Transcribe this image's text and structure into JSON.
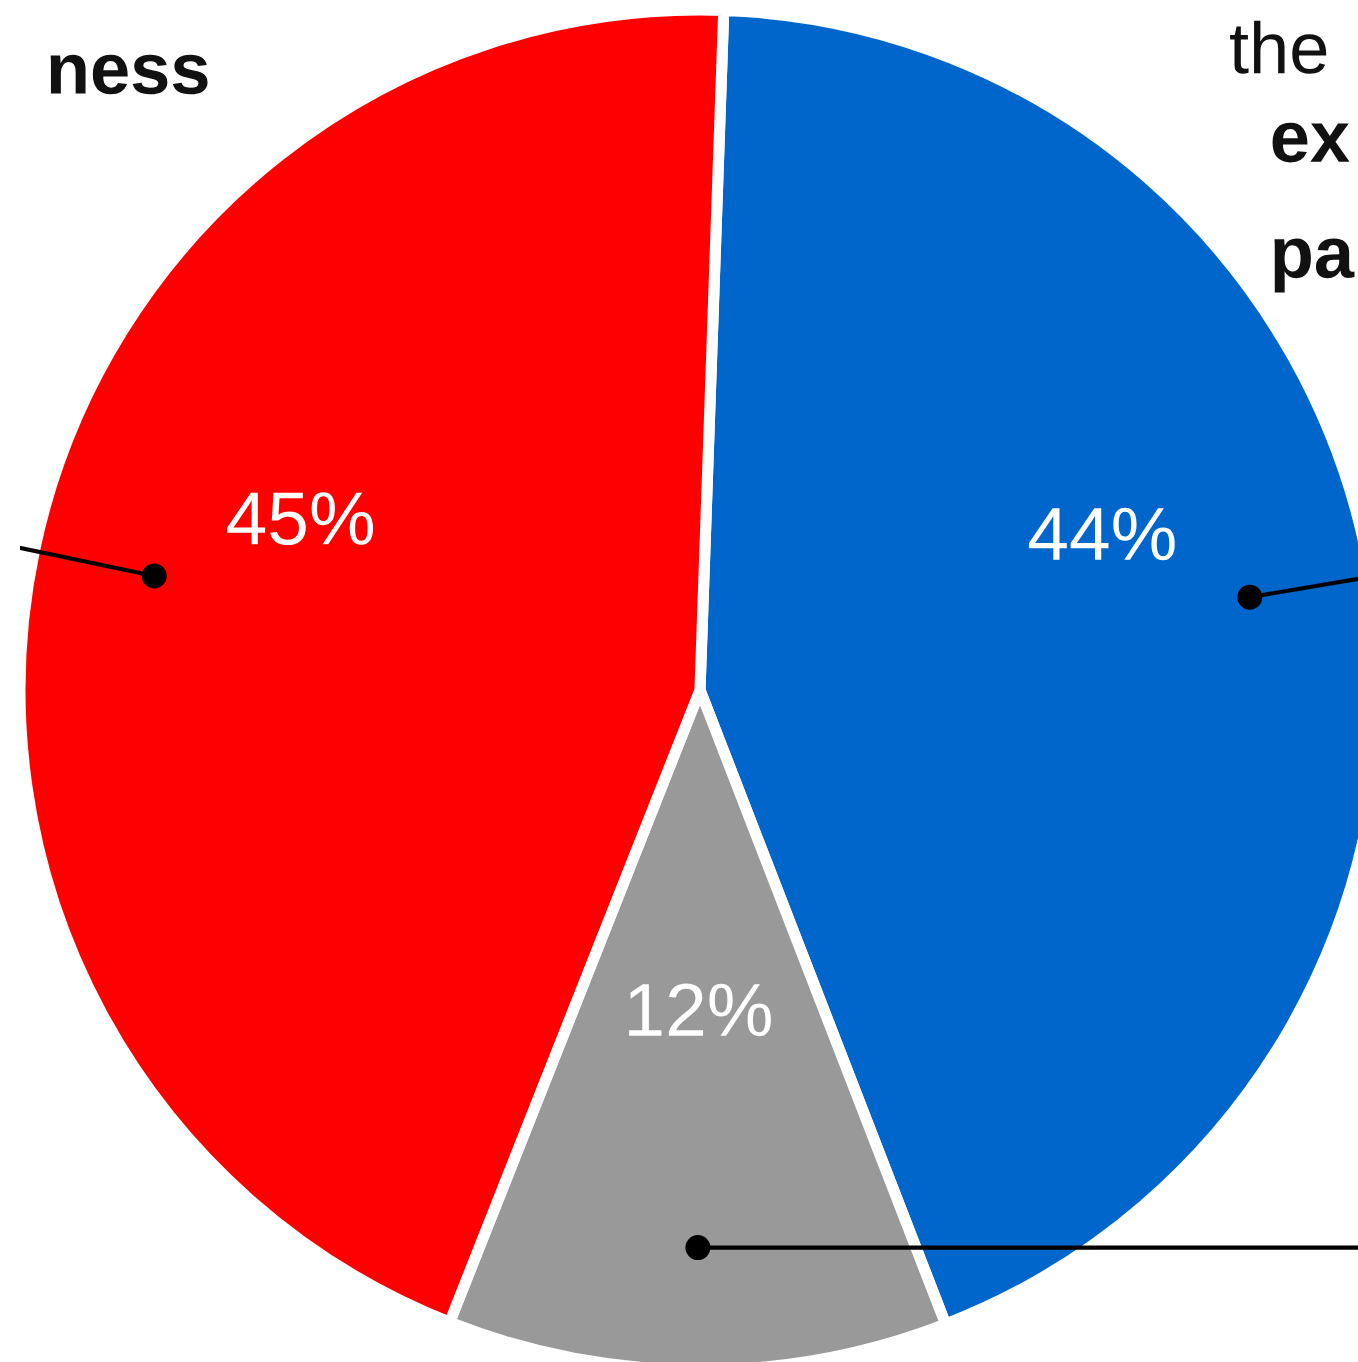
{
  "chart_data": {
    "type": "pie",
    "categories": [
      null,
      null,
      null
    ],
    "values": [
      44,
      12,
      45
    ],
    "colors": [
      "#0066cc",
      "#999999",
      "#ff0000"
    ],
    "value_labels": [
      "44%",
      "12%",
      "45%"
    ],
    "annotations": [
      "ness",
      "the",
      "ex",
      "pa"
    ]
  }
}
